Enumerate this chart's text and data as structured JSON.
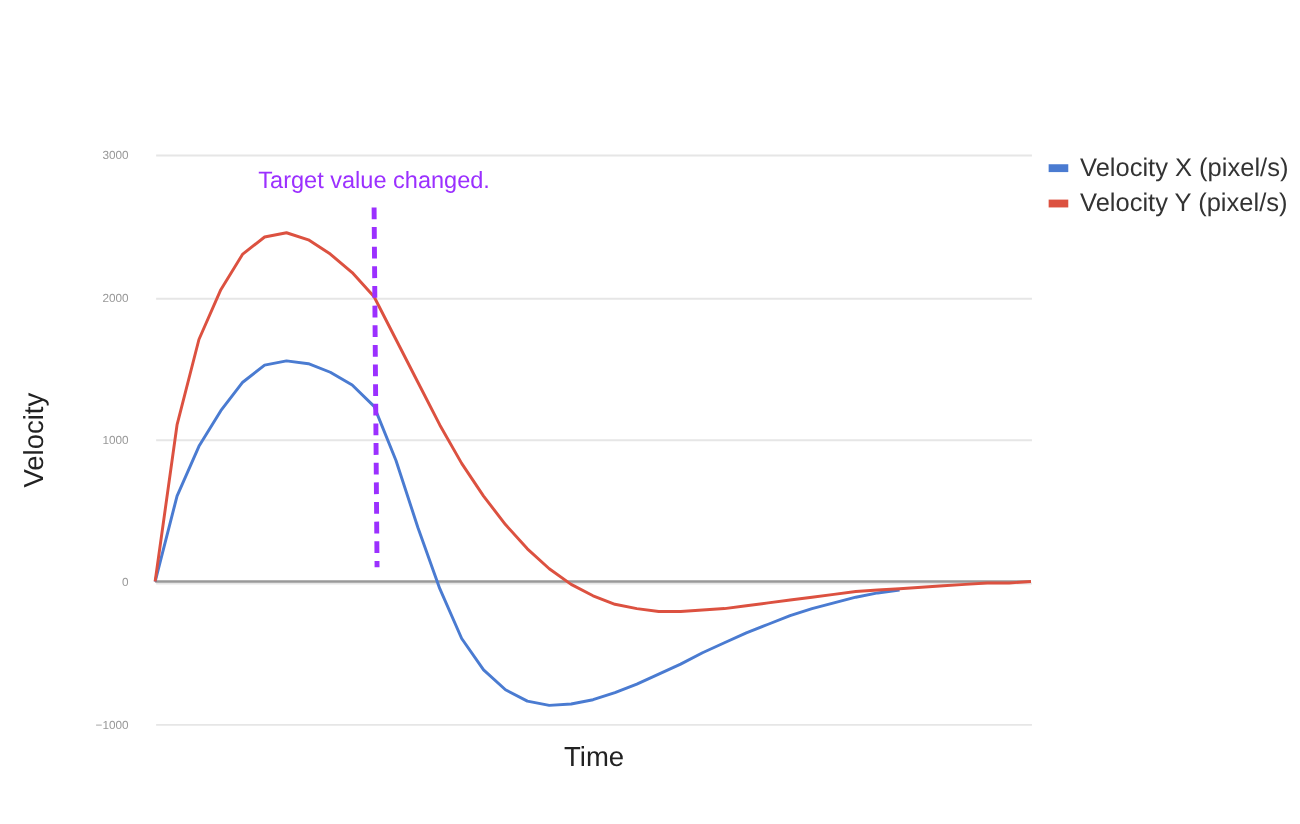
{
  "chart_data": {
    "type": "line",
    "xlabel": "Time",
    "ylabel": "Velocity",
    "categories": [
      null,
      null,
      null,
      null,
      null,
      null,
      null,
      null,
      null,
      null,
      null,
      null,
      null,
      null,
      null,
      null,
      null,
      null,
      null,
      null,
      null,
      null,
      null,
      null,
      null,
      null,
      null,
      null,
      null,
      null,
      null,
      null,
      null,
      null,
      null,
      null,
      null,
      null,
      null,
      null,
      null
    ],
    "ylim": [
      -1000,
      3000
    ],
    "yticks": [
      -1000,
      0,
      1000,
      2000,
      3000
    ],
    "grid": "y",
    "legend": "top right",
    "series": [
      {
        "name": "Velocity X (pixel/s)",
        "color": "#4a7bd1",
        "values": [
          0,
          600,
          950,
          1200,
          1400,
          1520,
          1550,
          1530,
          1470,
          1380,
          1230,
          850,
          380,
          -50,
          -400,
          -620,
          -760,
          -840,
          -870,
          -860,
          -830,
          -780,
          -720,
          -650,
          -580,
          -500,
          -430,
          -360,
          -300,
          -240,
          -190,
          -150,
          -110,
          -80,
          -60,
          null,
          null,
          null,
          null,
          null,
          null
        ]
      },
      {
        "name": "Velocity Y (pixel/s)",
        "color": "#dc5140",
        "values": [
          0,
          1100,
          1700,
          2050,
          2300,
          2420,
          2450,
          2400,
          2300,
          2170,
          2000,
          1700,
          1400,
          1100,
          830,
          600,
          400,
          230,
          90,
          -20,
          -100,
          -160,
          -190,
          -210,
          -210,
          -200,
          -190,
          -170,
          -150,
          -130,
          -110,
          -90,
          -70,
          -60,
          -50,
          -40,
          -30,
          -20,
          -10,
          -10,
          0
        ]
      }
    ],
    "annotations": [
      "Target value changed."
    ]
  }
}
